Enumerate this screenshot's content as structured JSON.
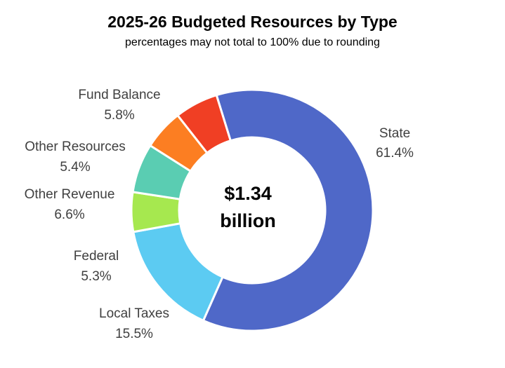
{
  "chart_data": {
    "type": "donut",
    "title": "2025-26 Budgeted Resources by Type",
    "subtitle": "percentages may not total to 100% due to rounding",
    "center_label": [
      "$1.34",
      "billion"
    ],
    "slices": [
      {
        "name": "State",
        "value": 61.4,
        "label": "61.4%",
        "color": "#4F68C8"
      },
      {
        "name": "Local Taxes",
        "value": 15.5,
        "label": "15.5%",
        "color": "#5CCBF2"
      },
      {
        "name": "Federal",
        "value": 5.3,
        "label": "5.3%",
        "color": "#A6E84F"
      },
      {
        "name": "Other Revenue",
        "value": 6.6,
        "label": "6.6%",
        "color": "#5ACDB2"
      },
      {
        "name": "Other Resources",
        "value": 5.4,
        "label": "5.4%",
        "color": "#FC7E22"
      },
      {
        "name": "Fund Balance",
        "value": 5.8,
        "label": "5.8%",
        "color": "#F03F24"
      }
    ]
  }
}
